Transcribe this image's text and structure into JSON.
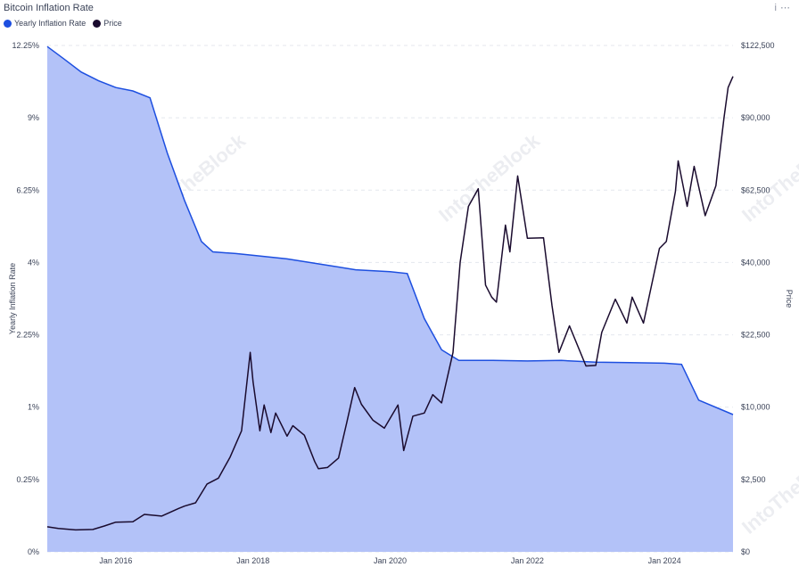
{
  "header": {
    "title": "Bitcoin Inflation Rate",
    "info_icon": "info-icon",
    "menu_icon": "more-icon"
  },
  "legend": [
    {
      "label": "Yearly Inflation Rate",
      "color": "#1d4fe0"
    },
    {
      "label": "Price",
      "color": "#1a0b2e"
    }
  ],
  "watermark": "IntoTheBlock",
  "colors": {
    "inflation_line": "#1d4fe0",
    "inflation_fill": "#b3c2f8",
    "price_line": "#1a0b2e"
  },
  "chart_data": {
    "type": "area",
    "x_ticks": [
      "Jan 2016",
      "Jan 2018",
      "Jan 2020",
      "Jan 2022",
      "Jan 2024"
    ],
    "y_left": {
      "label": "Yearly Inflation Rate",
      "ticks": [
        "0%",
        "0.25%",
        "1%",
        "2.25%",
        "4%",
        "6.25%",
        "9%",
        "12.25%"
      ],
      "scale": "sqrt",
      "range": [
        0,
        12.25
      ]
    },
    "y_right": {
      "label": "Price",
      "ticks": [
        "$0",
        "$2,500",
        "$10,000",
        "$22,500",
        "$40,000",
        "$62,500",
        "$90,000",
        "$122,500"
      ],
      "scale": "sqrt",
      "range": [
        0,
        122500
      ]
    },
    "series": [
      {
        "name": "Yearly Inflation Rate",
        "points": [
          [
            "2015-01-01",
            12.2
          ],
          [
            "2015-04-01",
            11.6
          ],
          [
            "2015-07-01",
            11.0
          ],
          [
            "2015-10-01",
            10.6
          ],
          [
            "2016-01-01",
            10.3
          ],
          [
            "2016-04-01",
            10.15
          ],
          [
            "2016-07-01",
            9.85
          ],
          [
            "2016-10-01",
            7.6
          ],
          [
            "2017-01-01",
            5.9
          ],
          [
            "2017-04-01",
            4.6
          ],
          [
            "2017-06-01",
            4.3
          ],
          [
            "2017-10-01",
            4.25
          ],
          [
            "2018-01-01",
            4.2
          ],
          [
            "2018-07-01",
            4.1
          ],
          [
            "2019-01-01",
            3.95
          ],
          [
            "2019-07-01",
            3.8
          ],
          [
            "2020-01-01",
            3.75
          ],
          [
            "2020-04-01",
            3.7
          ],
          [
            "2020-07-01",
            2.6
          ],
          [
            "2020-10-01",
            1.95
          ],
          [
            "2021-01-01",
            1.75
          ],
          [
            "2021-07-01",
            1.75
          ],
          [
            "2022-01-01",
            1.74
          ],
          [
            "2022-07-01",
            1.75
          ],
          [
            "2023-01-01",
            1.72
          ],
          [
            "2023-07-01",
            1.71
          ],
          [
            "2024-01-01",
            1.7
          ],
          [
            "2024-04-01",
            1.68
          ],
          [
            "2024-07-01",
            1.1
          ],
          [
            "2024-12-31",
            0.9
          ]
        ]
      },
      {
        "name": "Price",
        "points": [
          [
            "2015-01-01",
            300
          ],
          [
            "2015-03-01",
            260
          ],
          [
            "2015-06-01",
            230
          ],
          [
            "2015-09-01",
            240
          ],
          [
            "2015-11-01",
            320
          ],
          [
            "2016-01-01",
            420
          ],
          [
            "2016-04-01",
            430
          ],
          [
            "2016-06-01",
            670
          ],
          [
            "2016-09-01",
            610
          ],
          [
            "2016-12-01",
            900
          ],
          [
            "2017-01-01",
            1000
          ],
          [
            "2017-03-01",
            1150
          ],
          [
            "2017-05-01",
            2200
          ],
          [
            "2017-07-01",
            2600
          ],
          [
            "2017-09-01",
            4300
          ],
          [
            "2017-11-01",
            7000
          ],
          [
            "2017-12-17",
            19000
          ],
          [
            "2018-01-01",
            13800
          ],
          [
            "2018-02-06",
            7000
          ],
          [
            "2018-03-01",
            10300
          ],
          [
            "2018-04-06",
            6800
          ],
          [
            "2018-05-01",
            9200
          ],
          [
            "2018-07-01",
            6400
          ],
          [
            "2018-08-01",
            7600
          ],
          [
            "2018-10-01",
            6500
          ],
          [
            "2018-11-25",
            3900
          ],
          [
            "2018-12-15",
            3300
          ],
          [
            "2019-02-01",
            3400
          ],
          [
            "2019-04-01",
            4200
          ],
          [
            "2019-05-15",
            8000
          ],
          [
            "2019-06-26",
            12900
          ],
          [
            "2019-08-01",
            10400
          ],
          [
            "2019-10-01",
            8300
          ],
          [
            "2019-12-01",
            7300
          ],
          [
            "2020-02-12",
            10300
          ],
          [
            "2020-03-13",
            4900
          ],
          [
            "2020-05-01",
            8800
          ],
          [
            "2020-07-01",
            9200
          ],
          [
            "2020-08-15",
            11800
          ],
          [
            "2020-10-01",
            10600
          ],
          [
            "2020-12-01",
            19000
          ],
          [
            "2021-01-08",
            40000
          ],
          [
            "2021-02-21",
            57000
          ],
          [
            "2021-04-14",
            63000
          ],
          [
            "2021-05-23",
            34000
          ],
          [
            "2021-06-25",
            31000
          ],
          [
            "2021-07-20",
            29800
          ],
          [
            "2021-09-06",
            51000
          ],
          [
            "2021-09-30",
            43000
          ],
          [
            "2021-11-10",
            67500
          ],
          [
            "2022-01-01",
            47000
          ],
          [
            "2022-03-28",
            47100
          ],
          [
            "2022-05-12",
            29000
          ],
          [
            "2022-06-18",
            19000
          ],
          [
            "2022-08-13",
            24400
          ],
          [
            "2022-11-09",
            16500
          ],
          [
            "2022-12-31",
            16600
          ],
          [
            "2023-02-01",
            23000
          ],
          [
            "2023-04-14",
            30500
          ],
          [
            "2023-06-15",
            25000
          ],
          [
            "2023-07-13",
            31000
          ],
          [
            "2023-09-11",
            25000
          ],
          [
            "2023-12-05",
            44000
          ],
          [
            "2024-01-11",
            46000
          ],
          [
            "2024-02-28",
            62000
          ],
          [
            "2024-03-14",
            73000
          ],
          [
            "2024-05-01",
            57000
          ],
          [
            "2024-06-07",
            71000
          ],
          [
            "2024-08-05",
            54000
          ],
          [
            "2024-10-01",
            64000
          ],
          [
            "2024-11-13",
            90000
          ],
          [
            "2024-12-05",
            103000
          ],
          [
            "2024-12-31",
            108000
          ]
        ]
      }
    ],
    "x_range": [
      "2015-01-01",
      "2024-12-31"
    ],
    "grid": "horizontal dashed",
    "legend_position": "top-left"
  }
}
